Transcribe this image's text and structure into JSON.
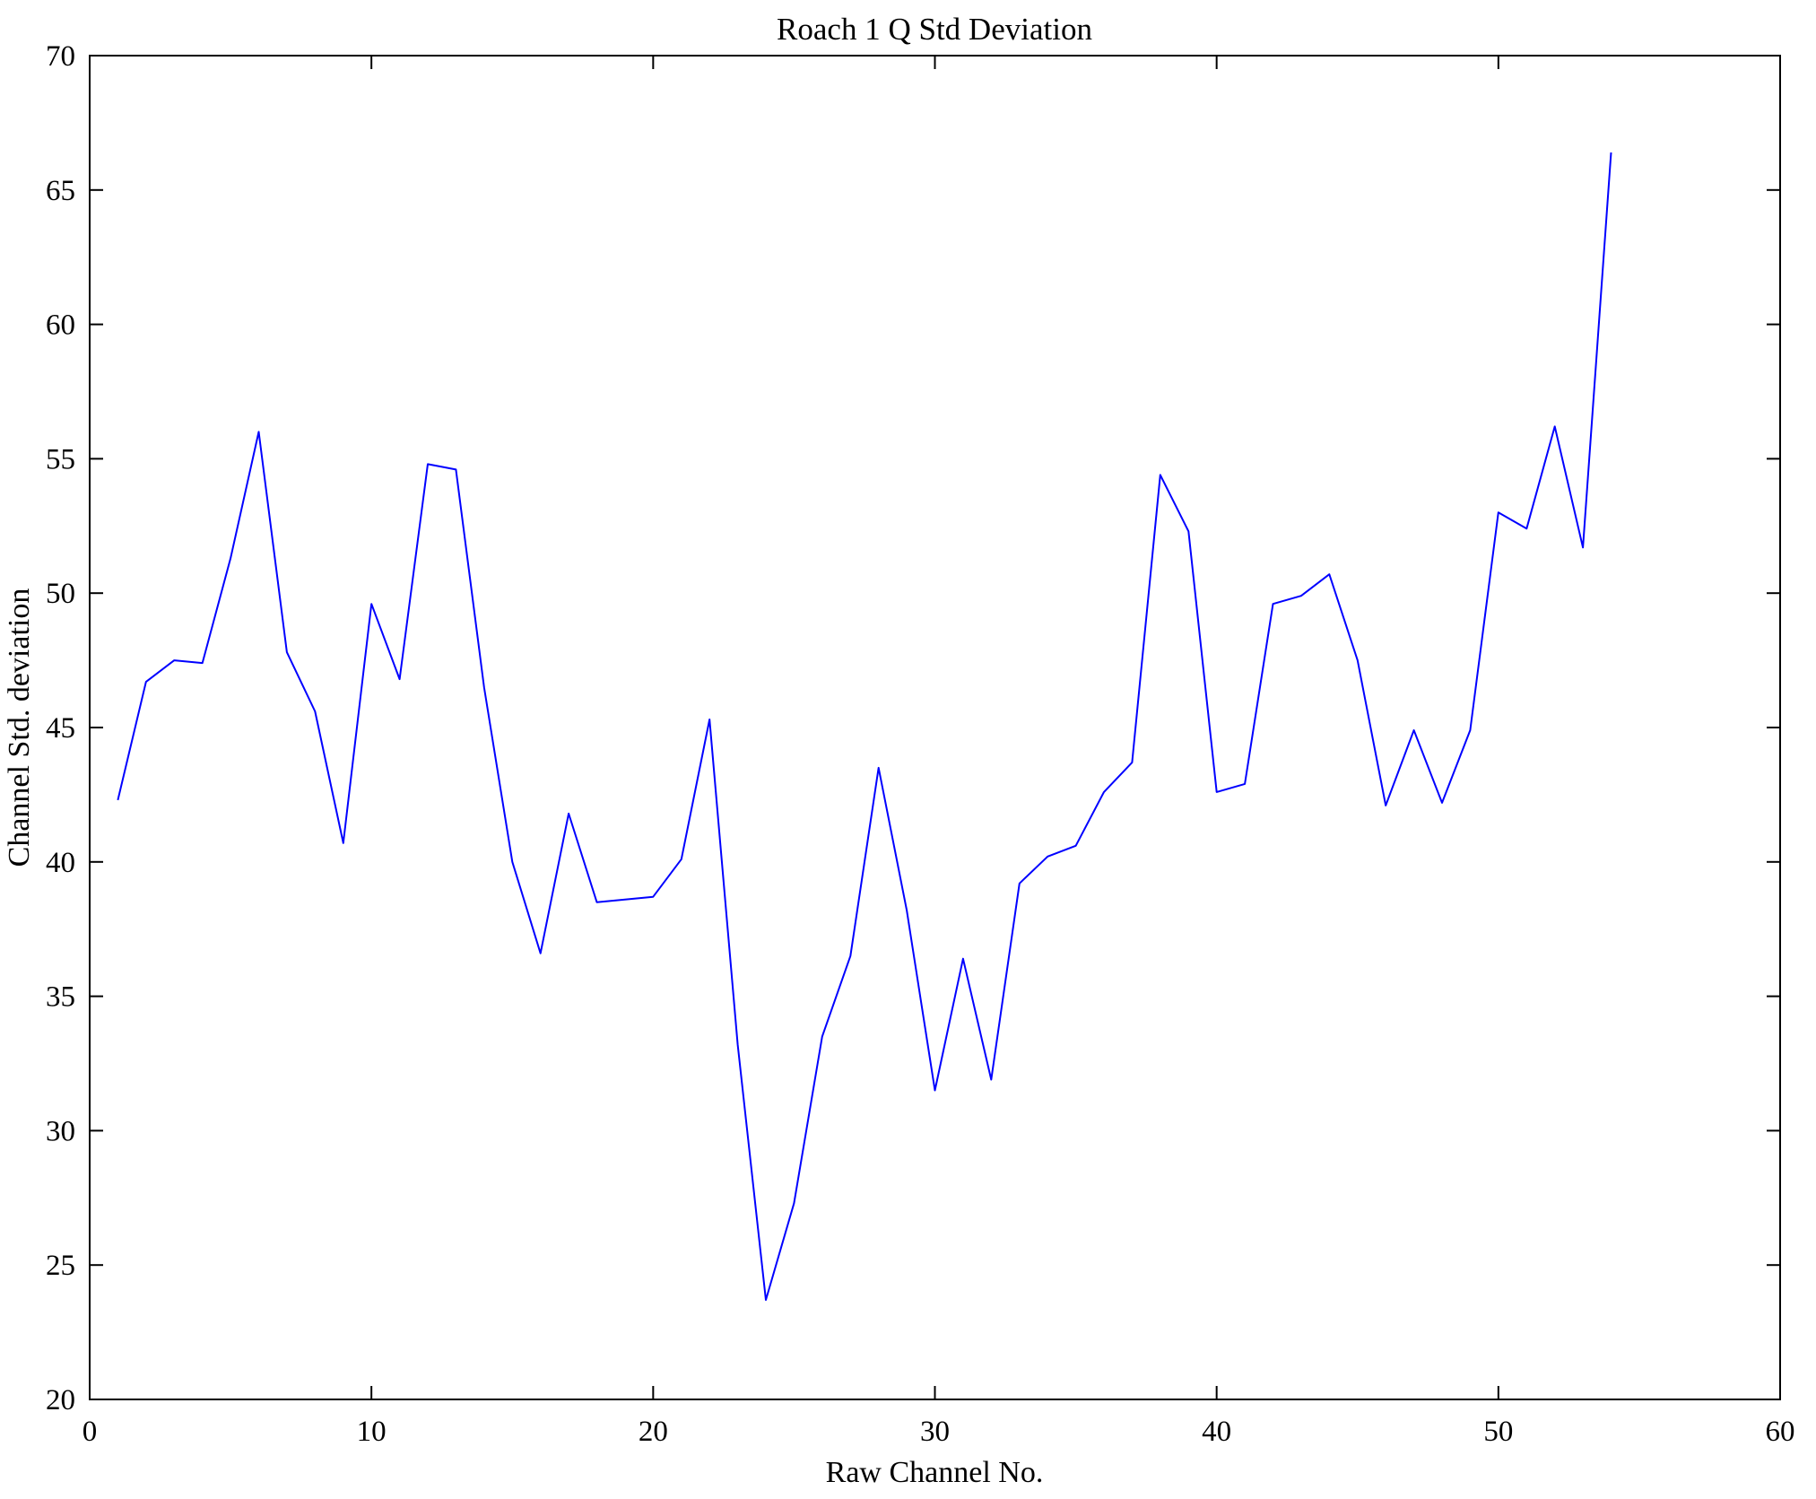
{
  "figure": {
    "background": "#ffffff",
    "frame_color": "#000000"
  },
  "chart_data": {
    "type": "line",
    "title": "Roach 1 Q Std Deviation",
    "xlabel": "Raw Channel No.",
    "ylabel": "Channel Std. deviation",
    "xlim": [
      0,
      60
    ],
    "ylim": [
      20,
      70
    ],
    "xticks": [
      0,
      10,
      20,
      30,
      40,
      50,
      60
    ],
    "yticks": [
      20,
      25,
      30,
      35,
      40,
      45,
      50,
      55,
      60,
      65,
      70
    ],
    "grid": false,
    "legend_position": "none",
    "line_color": "#0000ff",
    "x": [
      1,
      2,
      3,
      4,
      5,
      6,
      7,
      8,
      9,
      10,
      11,
      12,
      13,
      14,
      15,
      16,
      17,
      18,
      19,
      20,
      21,
      22,
      23,
      24,
      25,
      26,
      27,
      28,
      29,
      30,
      31,
      32,
      33,
      34,
      35,
      36,
      37,
      38,
      39,
      40,
      41,
      42,
      43,
      44,
      45,
      46,
      47,
      48,
      49,
      50,
      51,
      52,
      53,
      54
    ],
    "y": [
      42.3,
      46.7,
      47.5,
      47.4,
      51.3,
      56.0,
      47.8,
      45.6,
      40.7,
      49.6,
      46.8,
      54.8,
      54.6,
      46.5,
      40.0,
      36.6,
      41.8,
      38.5,
      38.6,
      38.7,
      40.1,
      45.3,
      33.2,
      23.7,
      27.3,
      33.5,
      36.5,
      43.5,
      38.2,
      31.5,
      36.4,
      31.9,
      39.2,
      40.2,
      40.6,
      42.6,
      43.7,
      54.4,
      52.3,
      42.6,
      42.9,
      49.6,
      49.9,
      50.7,
      47.5,
      42.1,
      44.9,
      42.2,
      44.9,
      53.0,
      52.4,
      56.2,
      51.7,
      66.4
    ]
  }
}
